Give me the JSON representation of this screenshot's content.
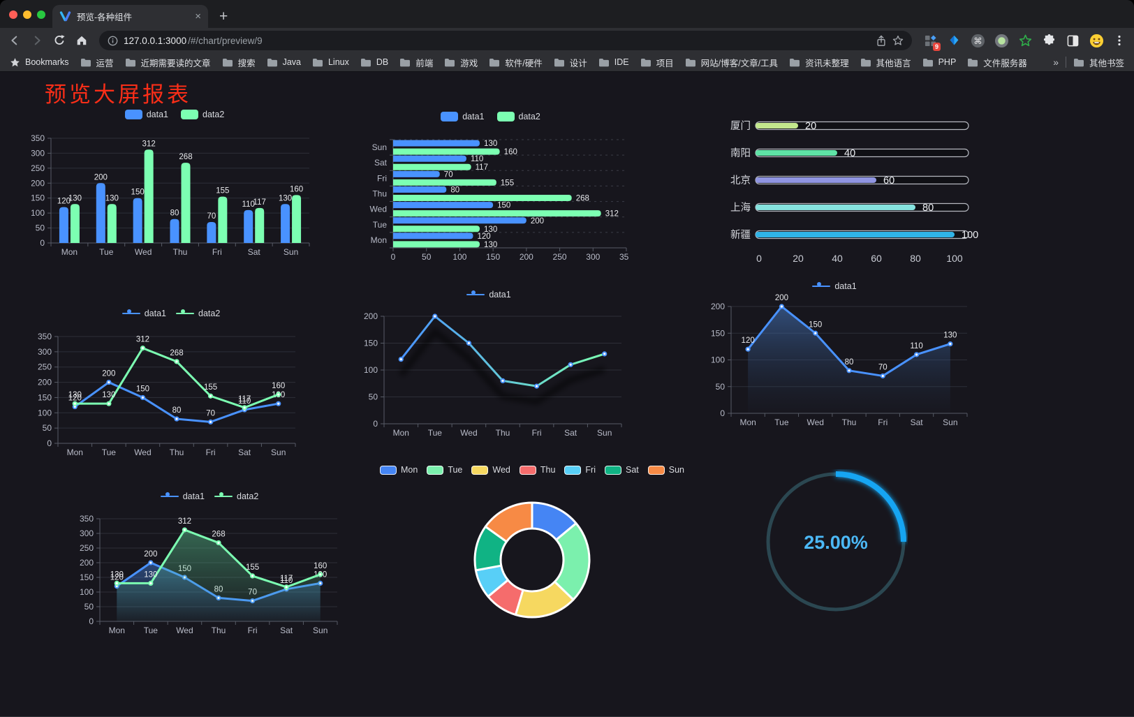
{
  "browser": {
    "tab": {
      "title": "预览-各种组件",
      "close_glyph": "×"
    },
    "new_tab_glyph": "+",
    "url": {
      "host": "127.0.0.1:3000",
      "path": "/#/chart/preview/9"
    },
    "extensions_badge": "9",
    "bookmarks_bar": {
      "star_label": "Bookmarks",
      "folders": [
        "运营",
        "近期需要读的文章",
        "搜索",
        "Java",
        "Linux",
        "DB",
        "前端",
        "游戏",
        "软件/硬件",
        "设计",
        "IDE",
        "项目",
        "网站/博客/文章/工具",
        "资讯未整理",
        "其他语言",
        "PHP",
        "文件服务器"
      ],
      "overflow_chevron": "»",
      "other_bookmarks": "其他书签"
    }
  },
  "page": {
    "title": "预览大屏报表"
  },
  "charts": {
    "categories": [
      "Mon",
      "Tue",
      "Wed",
      "Thu",
      "Fri",
      "Sat",
      "Sun"
    ],
    "grouped_bar": {
      "type": "bar",
      "ylim": [
        0,
        350
      ],
      "ytick_step": 50,
      "series": [
        {
          "name": "data1",
          "color": "#4992ff",
          "values": [
            120,
            200,
            150,
            80,
            70,
            110,
            130
          ]
        },
        {
          "name": "data2",
          "color": "#7cffb2",
          "values": [
            130,
            130,
            312,
            268,
            155,
            117,
            160
          ]
        }
      ]
    },
    "horizontal_bar": {
      "type": "bar-horizontal",
      "xlim": [
        0,
        350
      ],
      "xtick_step": 50,
      "series": [
        {
          "name": "data1",
          "color": "#4992ff",
          "values": [
            120,
            200,
            150,
            80,
            70,
            110,
            130
          ]
        },
        {
          "name": "data2",
          "color": "#7cffb2",
          "values": [
            130,
            130,
            312,
            268,
            155,
            117,
            160
          ]
        }
      ]
    },
    "city_progress": {
      "type": "progress-bar-list",
      "max": 100,
      "xticks": [
        0,
        20,
        40,
        60,
        80,
        100
      ],
      "items": [
        {
          "label": "厦门",
          "value": 20,
          "color": "#c3e88d"
        },
        {
          "label": "南阳",
          "value": 40,
          "color": "#5fe3a6"
        },
        {
          "label": "北京",
          "value": 60,
          "color": "#9095e2"
        },
        {
          "label": "上海",
          "value": 80,
          "color": "#86e3df"
        },
        {
          "label": "新疆",
          "value": 100,
          "color": "#30b3e6"
        }
      ]
    },
    "line_basic": {
      "type": "line",
      "ylim": [
        0,
        350
      ],
      "ytick_step": 50,
      "labels": true,
      "series": [
        {
          "name": "data1",
          "color": "#4992ff",
          "values": [
            120,
            200,
            150,
            80,
            70,
            110,
            130
          ]
        },
        {
          "name": "data2",
          "color": "#7cffb2",
          "values": [
            130,
            130,
            312,
            268,
            155,
            117,
            160
          ]
        }
      ]
    },
    "line_gradient": {
      "type": "line",
      "ylim": [
        0,
        200
      ],
      "ytick_step": 50,
      "labels": false,
      "gradient": [
        "#4992ff",
        "#7cffb2"
      ],
      "shadow": true,
      "series": [
        {
          "name": "data1",
          "color": "#4992ff",
          "values": [
            120,
            200,
            150,
            80,
            70,
            110,
            130
          ]
        }
      ]
    },
    "line_area_single": {
      "type": "line-area",
      "ylim": [
        0,
        200
      ],
      "ytick_step": 50,
      "labels": true,
      "series": [
        {
          "name": "data1",
          "color": "#4992ff",
          "area": [
            "rgba(73,125,200,0.55)",
            "rgba(40,60,90,0.04)"
          ],
          "values": [
            120,
            200,
            150,
            80,
            70,
            110,
            130
          ]
        }
      ]
    },
    "line_area_double": {
      "type": "line-area",
      "ylim": [
        0,
        350
      ],
      "ytick_step": 50,
      "labels": true,
      "series": [
        {
          "name": "data1",
          "color": "#4992ff",
          "area": [
            "rgba(73,146,255,0.40)",
            "rgba(73,146,255,0.03)"
          ],
          "values": [
            120,
            200,
            150,
            80,
            70,
            110,
            130
          ]
        },
        {
          "name": "data2",
          "color": "#7cffb2",
          "area": [
            "rgba(90,200,145,0.45)",
            "rgba(90,200,145,0.03)"
          ],
          "values": [
            130,
            130,
            312,
            268,
            155,
            117,
            160
          ]
        }
      ]
    },
    "donut": {
      "type": "donut",
      "items": [
        {
          "label": "Mon",
          "value": 120,
          "color": "#4585f4"
        },
        {
          "label": "Tue",
          "value": 200,
          "color": "#7bf0ad"
        },
        {
          "label": "Wed",
          "value": 150,
          "color": "#f6d860"
        },
        {
          "label": "Thu",
          "value": 80,
          "color": "#f56c6c"
        },
        {
          "label": "Fri",
          "value": 70,
          "color": "#58cff7"
        },
        {
          "label": "Sat",
          "value": 110,
          "color": "#10b384"
        },
        {
          "label": "Sun",
          "value": 130,
          "color": "#f78a45"
        }
      ]
    },
    "gauge": {
      "type": "gauge-ring",
      "value_percent": 25,
      "display": "25.00%",
      "arc_color": "#18a5f2",
      "track_color": "#2b4751",
      "text_color": "#4cb9f7"
    },
    "style": {
      "axis_label": "#b9bcc9",
      "value_label": "#e8e9ec",
      "grid_line": "#2d2f38",
      "axis_line": "#575b66"
    }
  }
}
